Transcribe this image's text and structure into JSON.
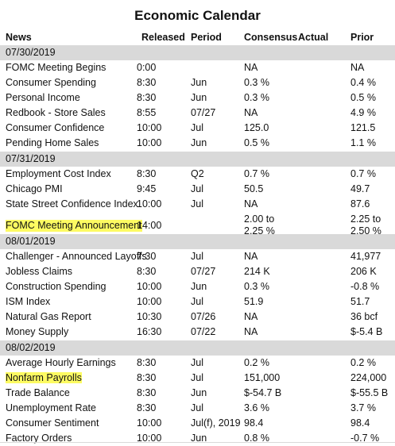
{
  "title": "Economic Calendar",
  "headers": {
    "news": "News",
    "released": "Released",
    "period": "Period",
    "consensus": "Consensus",
    "actual": "Actual",
    "prior": "Prior"
  },
  "highlight_color": "#fdfb62",
  "date_bar_color": "#d9d9d9",
  "groups": [
    {
      "date": "07/30/2019",
      "rows": [
        {
          "news": "FOMC Meeting Begins",
          "released": "0:00",
          "period": "",
          "consensus": "NA",
          "actual": "",
          "prior": "NA"
        },
        {
          "news": "Consumer Spending",
          "released": "8:30",
          "period": "Jun",
          "consensus": "0.3 %",
          "actual": "",
          "prior": "0.4 %"
        },
        {
          "news": "Personal Income",
          "released": "8:30",
          "period": "Jun",
          "consensus": "0.3 %",
          "actual": "",
          "prior": "0.5 %"
        },
        {
          "news": "Redbook - Store Sales",
          "released": "8:55",
          "period": "07/27",
          "consensus": "NA",
          "actual": "",
          "prior": "4.9 %"
        },
        {
          "news": "Consumer Confidence",
          "released": "10:00",
          "period": "Jul",
          "consensus": "125.0",
          "actual": "",
          "prior": "121.5"
        },
        {
          "news": "Pending Home Sales",
          "released": "10:00",
          "period": "Jun",
          "consensus": "0.5 %",
          "actual": "",
          "prior": "1.1 %"
        }
      ]
    },
    {
      "date": "07/31/2019",
      "rows": [
        {
          "news": "Employment Cost Index",
          "released": "8:30",
          "period": "Q2",
          "consensus": "0.7 %",
          "actual": "",
          "prior": "0.7 %"
        },
        {
          "news": "Chicago PMI",
          "released": "9:45",
          "period": "Jul",
          "consensus": "50.5",
          "actual": "",
          "prior": "49.7"
        },
        {
          "news": "State Street Confidence Index",
          "released": "10:00",
          "period": "Jul",
          "consensus": "NA",
          "actual": "",
          "prior": "87.6"
        },
        {
          "news": "FOMC Meeting Announcement",
          "released": "14:00",
          "period": "",
          "consensus": "2.00 to",
          "consensus2": "2.25 %",
          "actual": "",
          "prior": "2.25 to",
          "prior2": "2.50 %",
          "highlight": true
        }
      ]
    },
    {
      "date": "08/01/2019",
      "rows": [
        {
          "news": "Challenger - Announced Layoffs",
          "released": "7:30",
          "period": "Jul",
          "consensus": "NA",
          "actual": "",
          "prior": "41,977"
        },
        {
          "news": "Jobless Claims",
          "released": "8:30",
          "period": "07/27",
          "consensus": "214 K",
          "actual": "",
          "prior": "206 K"
        },
        {
          "news": "Construction Spending",
          "released": "10:00",
          "period": "Jun",
          "consensus": "0.3 %",
          "actual": "",
          "prior": "-0.8 %"
        },
        {
          "news": "ISM Index",
          "released": "10:00",
          "period": "Jul",
          "consensus": "51.9",
          "actual": "",
          "prior": "51.7"
        },
        {
          "news": "Natural Gas Report",
          "released": "10:30",
          "period": "07/26",
          "consensus": "NA",
          "actual": "",
          "prior": "36 bcf"
        },
        {
          "news": "Money Supply",
          "released": "16:30",
          "period": "07/22",
          "consensus": "NA",
          "actual": "",
          "prior": "$-5.4 B"
        }
      ]
    },
    {
      "date": "08/02/2019",
      "rows": [
        {
          "news": "Average Hourly Earnings",
          "released": "8:30",
          "period": "Jul",
          "consensus": "0.2 %",
          "actual": "",
          "prior": "0.2 %"
        },
        {
          "news": "Nonfarm Payrolls",
          "released": "8:30",
          "period": "Jul",
          "consensus": "151,000",
          "actual": "",
          "prior": "224,000",
          "highlight": true
        },
        {
          "news": "Trade Balance",
          "released": "8:30",
          "period": "Jun",
          "consensus": "$-54.7 B",
          "actual": "",
          "prior": "$-55.5 B"
        },
        {
          "news": "Unemployment Rate",
          "released": "8:30",
          "period": "Jul",
          "consensus": "3.6 %",
          "actual": "",
          "prior": "3.7 %"
        },
        {
          "news": "Consumer Sentiment",
          "released": "10:00",
          "period": "Jul(f), 2019",
          "consensus": "98.4",
          "actual": "",
          "prior": "98.4"
        },
        {
          "news": "Factory Orders",
          "released": "10:00",
          "period": "Jun",
          "consensus": "0.8 %",
          "actual": "",
          "prior": "-0.7 %"
        }
      ]
    }
  ]
}
